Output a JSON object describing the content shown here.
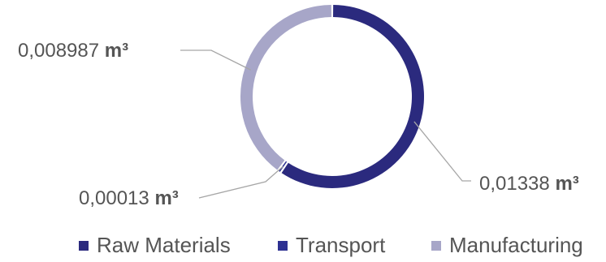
{
  "chart_data": {
    "type": "pie",
    "donut": true,
    "title": "",
    "series": [
      {
        "name": "Raw Materials",
        "value": 0.01338,
        "label": "0,01338",
        "unit": "m³",
        "color": "#2b2a7e"
      },
      {
        "name": "Transport",
        "value": 0.00013,
        "label": "0,00013",
        "unit": "m³",
        "color": "#2e3192"
      },
      {
        "name": "Manufacturing",
        "value": 0.008987,
        "label": "0,008987",
        "unit": "m³",
        "color": "#a7a6c8"
      }
    ],
    "legend": {
      "position": "bottom",
      "entries": [
        "Raw Materials",
        "Transport",
        "Manufacturing"
      ]
    }
  }
}
